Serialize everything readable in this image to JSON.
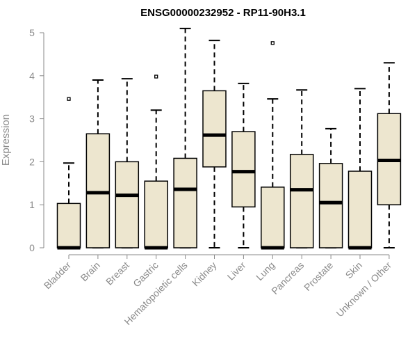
{
  "chart_data": {
    "type": "boxplot",
    "title": "ENSG00000232952 - RP11-90H3.1",
    "xlabel": "",
    "ylabel": "Expression",
    "ylim": [
      0,
      5
    ],
    "yticks": [
      "0",
      "1",
      "2",
      "3",
      "4",
      "5"
    ],
    "categories": [
      "Bladder",
      "Brain",
      "Breast",
      "Gastric",
      "Hematopoietic cells",
      "Kidney",
      "Liver",
      "Lung",
      "Pancreas",
      "Prostate",
      "Skin",
      "Unknown / Other"
    ],
    "boxes": [
      {
        "min": 0,
        "q1": 0,
        "median": 0,
        "q3": 1.03,
        "max": 1.97,
        "outliers": [
          3.46
        ]
      },
      {
        "min": 0,
        "q1": 0,
        "median": 1.28,
        "q3": 2.65,
        "max": 3.9,
        "outliers": []
      },
      {
        "min": 0,
        "q1": 0,
        "median": 1.22,
        "q3": 2.0,
        "max": 3.93,
        "outliers": []
      },
      {
        "min": 0,
        "q1": 0,
        "median": 0,
        "q3": 1.55,
        "max": 3.2,
        "outliers": [
          3.98
        ]
      },
      {
        "min": 0,
        "q1": 0,
        "median": 1.36,
        "q3": 2.08,
        "max": 5.1,
        "outliers": []
      },
      {
        "min": 0,
        "q1": 1.88,
        "median": 2.62,
        "q3": 3.65,
        "max": 4.82,
        "outliers": []
      },
      {
        "min": 0,
        "q1": 0.95,
        "median": 1.77,
        "q3": 2.7,
        "max": 3.82,
        "outliers": []
      },
      {
        "min": 0,
        "q1": 0,
        "median": 0,
        "q3": 1.41,
        "max": 3.46,
        "outliers": [
          4.76
        ]
      },
      {
        "min": 0,
        "q1": 0,
        "median": 1.35,
        "q3": 2.17,
        "max": 3.67,
        "outliers": []
      },
      {
        "min": 0,
        "q1": 0,
        "median": 1.05,
        "q3": 1.96,
        "max": 2.77,
        "outliers": []
      },
      {
        "min": 0,
        "q1": 0,
        "median": 0,
        "q3": 1.78,
        "max": 3.7,
        "outliers": []
      },
      {
        "min": 0,
        "q1": 1.0,
        "median": 2.03,
        "q3": 3.12,
        "max": 4.3,
        "outliers": []
      }
    ],
    "colors": {
      "box_fill": "#ede6cf",
      "stroke": "#000000",
      "axis": "#8a8a8a"
    }
  }
}
